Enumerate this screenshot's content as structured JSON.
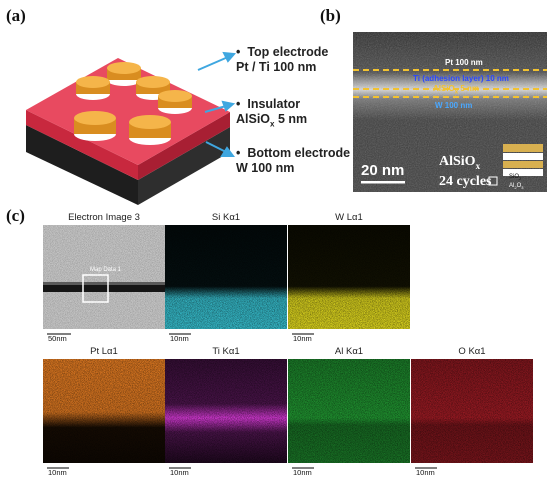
{
  "panels": {
    "a": "(a)",
    "b": "(b)",
    "c": "(c)"
  },
  "schematic": {
    "labels": [
      {
        "head": "Top electrode",
        "sub": "Pt / Ti 100 nm"
      },
      {
        "head": "Insulator",
        "sub": "AlSiO",
        "sub_sub": "x",
        "sub_tail": " 5 nm"
      },
      {
        "head": "Bottom electrode",
        "sub": "W 100 nm"
      }
    ],
    "bullet": "•",
    "colors": {
      "electrode": "#f0a530",
      "insulator": "#e0445a",
      "substrate": "#2a2a2a",
      "arrow": "#3fa7e0"
    }
  },
  "tem": {
    "layers": [
      {
        "text": "Pt 100 nm",
        "color": "#ffffff"
      },
      {
        "text": "Ti (adhesion layer) 10 nm",
        "color": "#1a3cff"
      },
      {
        "text_main": "AlSiO",
        "text_sub": "x",
        "text_tail": " 5 nm",
        "color": "#f2c230"
      },
      {
        "text": "W 100 nm",
        "color": "#4aa8ff"
      }
    ],
    "scalebar": "20 nm",
    "inset_title": "AlSiO",
    "inset_title_sub": "x",
    "inset_cycles": "24 cycles",
    "legend_sio2": "SiO",
    "legend_sio2_sub": "2",
    "legend_al2o3": "Al",
    "legend_al2o3_sub": "2",
    "legend_al2o3_tail": "O",
    "legend_al2o3_sub2": "3"
  },
  "eds": {
    "tiles": [
      {
        "title": "Electron Image 3",
        "scale": "50nm",
        "kind": "electron",
        "roi": "Map Data 1"
      },
      {
        "title": "Si Kα1",
        "scale": "10nm",
        "kind": "map",
        "color": "#39c6d6",
        "band": "bottom"
      },
      {
        "title": "W Lα1",
        "scale": "10nm",
        "kind": "map",
        "color": "#e8e020",
        "band": "bottom"
      },
      {
        "title": "Pt Lα1",
        "scale": "10nm",
        "kind": "map",
        "color": "#e07a22",
        "band": "top"
      },
      {
        "title": "Ti Kα1",
        "scale": "10nm",
        "kind": "map",
        "color": "#d63ad6",
        "band": "middle"
      },
      {
        "title": "Al Kα1",
        "scale": "10nm",
        "kind": "map",
        "color": "#27b03a",
        "band": "all"
      },
      {
        "title": "O Kα1",
        "scale": "10nm",
        "kind": "map",
        "color": "#b8202a",
        "band": "all"
      }
    ]
  }
}
